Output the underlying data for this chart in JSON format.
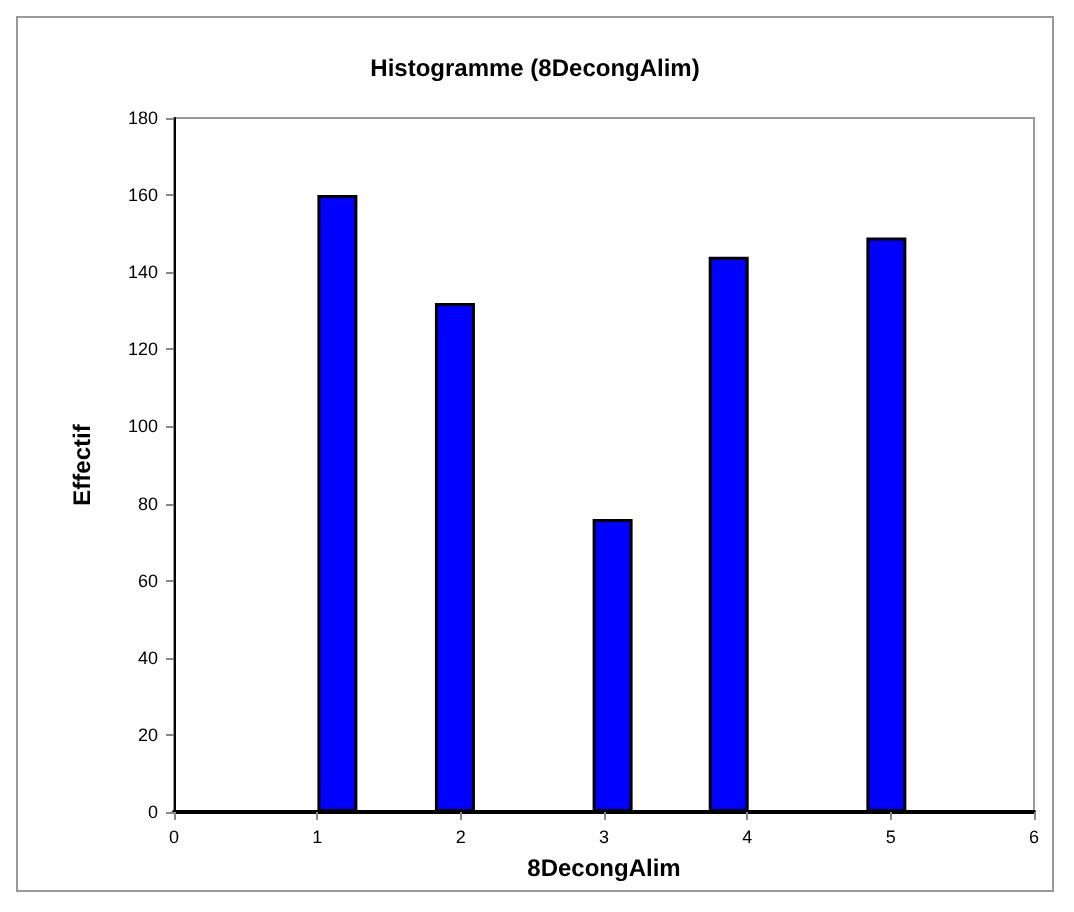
{
  "chart_data": {
    "type": "bar",
    "title": "Histogramme (8DecongAlim)",
    "xlabel": "8DecongAlim",
    "ylabel": "Effectif",
    "x": [
      1.14,
      1.96,
      3.06,
      3.87,
      4.97
    ],
    "values": [
      160,
      132,
      76,
      144,
      149
    ],
    "color": "#0000ff",
    "xlim": [
      0,
      6
    ],
    "xticks": [
      0,
      1,
      2,
      3,
      4,
      5,
      6
    ],
    "ylim": [
      0,
      180
    ],
    "yticks": [
      0,
      20,
      40,
      60,
      80,
      100,
      120,
      140,
      160,
      180
    ],
    "grid": false
  }
}
